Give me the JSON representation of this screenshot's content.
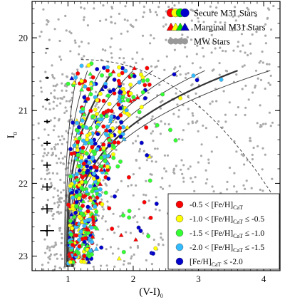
{
  "chart_data": {
    "type": "scatter",
    "xlabel": "(V-I)",
    "xlabel_sub": "0",
    "ylabel": "I",
    "ylabel_sub": "0",
    "xlim": [
      0.45,
      4.25
    ],
    "ylim": [
      23.2,
      19.5
    ],
    "y_inverted": true,
    "x_ticks": [
      {
        "v": 1,
        "label": "1"
      },
      {
        "v": 2,
        "label": "2"
      },
      {
        "v": 3,
        "label": "3"
      },
      {
        "v": 4,
        "label": "4"
      }
    ],
    "y_ticks": [
      {
        "v": 20,
        "label": "20"
      },
      {
        "v": 21,
        "label": "21"
      },
      {
        "v": 22,
        "label": "22"
      },
      {
        "v": 23,
        "label": "23"
      }
    ],
    "top_legend": [
      {
        "label": "Secure M31 Stars",
        "marker": "circle",
        "colors": [
          "#ff0000",
          "#ffff00",
          "#00dd00",
          "#0000cc"
        ]
      },
      {
        "label": "Marginal M31 Stars",
        "marker": "triangle",
        "colors": [
          "#ff0000",
          "#ffff00",
          "#00dd00",
          "#0000cc"
        ]
      },
      {
        "label": "MW Stars",
        "marker": "circle",
        "colors": [
          "#999999",
          "#999999",
          "#999999",
          "#999999"
        ]
      }
    ],
    "metallicity_legend": [
      {
        "color": "#ff0000",
        "pre": "-0.5 < [Fe/H]",
        "sub": "CaT",
        "post": ""
      },
      {
        "color": "#ffff00",
        "pre": "-1.0 < [Fe/H]",
        "sub": "CaT",
        "post": " ≤ -0.5"
      },
      {
        "color": "#33ff33",
        "pre": "-1.5 < [Fe/H]",
        "sub": "CaT",
        "post": " ≤ -1.0"
      },
      {
        "color": "#33bbff",
        "pre": "-2.0 < [Fe/H]",
        "sub": "CaT",
        "post": " ≤ -1.5"
      },
      {
        "color": "#0000cc",
        "pre": "[Fe/H]",
        "sub": "CaT",
        "post": " ≤ -2.0"
      }
    ],
    "error_bars": [
      {
        "I": 20.15,
        "err_color": 0.03,
        "err_mag": 0.01
      },
      {
        "I": 20.55,
        "err_color": 0.04,
        "err_mag": 0.015
      },
      {
        "I": 20.85,
        "err_color": 0.05,
        "err_mag": 0.02
      },
      {
        "I": 21.15,
        "err_color": 0.06,
        "err_mag": 0.025
      },
      {
        "I": 21.45,
        "err_color": 0.07,
        "err_mag": 0.03
      },
      {
        "I": 21.75,
        "err_color": 0.08,
        "err_mag": 0.04
      },
      {
        "I": 22.05,
        "err_color": 0.1,
        "err_mag": 0.05
      },
      {
        "I": 22.35,
        "err_color": 0.12,
        "err_mag": 0.06
      },
      {
        "I": 22.65,
        "err_color": 0.14,
        "err_mag": 0.07
      }
    ],
    "isochrones": [
      {
        "color_at_tip": 1.15,
        "thick": false
      },
      {
        "color_at_tip": 1.3,
        "thick": false
      },
      {
        "color_at_tip": 1.5,
        "thick": false
      },
      {
        "color_at_tip": 1.7,
        "thick": true
      },
      {
        "color_at_tip": 2.0,
        "thick": false
      },
      {
        "color_at_tip": 2.3,
        "thick": false
      },
      {
        "color_at_tip": 2.7,
        "thick": false
      },
      {
        "color_at_tip": 3.1,
        "thick": false
      },
      {
        "color_at_tip": 3.6,
        "thick": true
      },
      {
        "color_at_tip": 4.1,
        "thick": false
      }
    ],
    "series": [
      {
        "name": "MW Stars",
        "color": "#aaaaaa",
        "count": 700
      },
      {
        "name": "M31 Stars",
        "colors": [
          "#ff0000",
          "#ffff00",
          "#33ff33",
          "#33bbff",
          "#0000cc"
        ],
        "count": 650
      }
    ]
  }
}
